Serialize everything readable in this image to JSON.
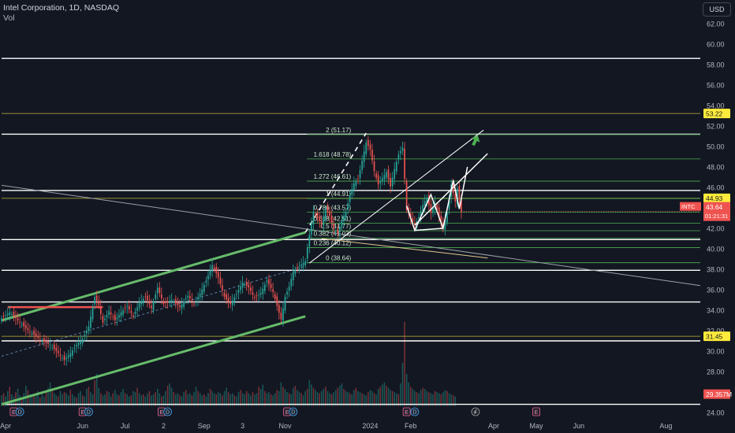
{
  "header": {
    "symbol_title": "Intel Corporation, 1D, NASDAQ",
    "volume_label": "Vol",
    "currency_button": "USD"
  },
  "chart_data": {
    "type": "candlestick",
    "y_range": [
      23.5,
      65
    ],
    "y_ticks": [
      "62.00",
      "60.00",
      "58.00",
      "56.00",
      "54.00",
      "52.00",
      "50.00",
      "48.00",
      "46.00",
      "44.00",
      "42.00",
      "40.00",
      "38.00",
      "36.00",
      "34.00",
      "32.00",
      "30.00",
      "28.00",
      "26.00",
      "24.00"
    ],
    "x_ticks": [
      {
        "label": "Apr",
        "idx": 2
      },
      {
        "label": "Jun",
        "idx": 40
      },
      {
        "label": "Jul",
        "idx": 61
      },
      {
        "label": "2",
        "idx": 80
      },
      {
        "label": "Sep",
        "idx": 100
      },
      {
        "label": "3",
        "idx": 119
      },
      {
        "label": "Nov",
        "idx": 140
      },
      {
        "label": "2024",
        "idx": 182
      },
      {
        "label": "Feb",
        "idx": 202
      },
      {
        "label": "Apr",
        "idx": 243
      },
      {
        "label": "May",
        "idx": 264
      },
      {
        "label": "Jun",
        "idx": 285
      },
      {
        "label": "Aug",
        "idx": 328
      }
    ],
    "x_range": [
      0,
      345
    ],
    "colors": {
      "up": "#26a69a",
      "down": "#ef5350",
      "green_line": "#66bb6a",
      "white": "#ffffff",
      "fib": "#4caf50",
      "accent": "#ffeb3b"
    },
    "prices": [
      {
        "idx": 0,
        "v": 33.2
      },
      {
        "idx": 4,
        "v": 33.8
      },
      {
        "idx": 8,
        "v": 33.0
      },
      {
        "idx": 12,
        "v": 32.2
      },
      {
        "idx": 16,
        "v": 31.6
      },
      {
        "idx": 20,
        "v": 31.0
      },
      {
        "idx": 24,
        "v": 30.6
      },
      {
        "idx": 28,
        "v": 29.8
      },
      {
        "idx": 31,
        "v": 29.1
      },
      {
        "idx": 34,
        "v": 29.8
      },
      {
        "idx": 37,
        "v": 30.6
      },
      {
        "idx": 40,
        "v": 31.2
      },
      {
        "idx": 43,
        "v": 32.4
      },
      {
        "idx": 46,
        "v": 35.3
      },
      {
        "idx": 48,
        "v": 34.5
      },
      {
        "idx": 50,
        "v": 32.8
      },
      {
        "idx": 53,
        "v": 33.9
      },
      {
        "idx": 56,
        "v": 33.0
      },
      {
        "idx": 59,
        "v": 33.8
      },
      {
        "idx": 62,
        "v": 34.4
      },
      {
        "idx": 65,
        "v": 33.4
      },
      {
        "idx": 68,
        "v": 34.7
      },
      {
        "idx": 71,
        "v": 35.3
      },
      {
        "idx": 74,
        "v": 34.2
      },
      {
        "idx": 77,
        "v": 36.2
      },
      {
        "idx": 80,
        "v": 34.6
      },
      {
        "idx": 84,
        "v": 35.0
      },
      {
        "idx": 88,
        "v": 34.3
      },
      {
        "idx": 92,
        "v": 35.4
      },
      {
        "idx": 95,
        "v": 34.6
      },
      {
        "idx": 98,
        "v": 35.6
      },
      {
        "idx": 101,
        "v": 36.9
      },
      {
        "idx": 104,
        "v": 38.4
      },
      {
        "idx": 107,
        "v": 37.2
      },
      {
        "idx": 110,
        "v": 35.3
      },
      {
        "idx": 113,
        "v": 34.6
      },
      {
        "idx": 116,
        "v": 35.6
      },
      {
        "idx": 119,
        "v": 36.7
      },
      {
        "idx": 122,
        "v": 36.2
      },
      {
        "idx": 125,
        "v": 35.2
      },
      {
        "idx": 128,
        "v": 35.7
      },
      {
        "idx": 131,
        "v": 36.9
      },
      {
        "idx": 134,
        "v": 35.8
      },
      {
        "idx": 136,
        "v": 34.4
      },
      {
        "idx": 138,
        "v": 33.1
      },
      {
        "idx": 140,
        "v": 35.3
      },
      {
        "idx": 142,
        "v": 36.3
      },
      {
        "idx": 144,
        "v": 37.8
      },
      {
        "idx": 147,
        "v": 38.3
      },
      {
        "idx": 150,
        "v": 38.8
      },
      {
        "idx": 152,
        "v": 41.4
      },
      {
        "idx": 154,
        "v": 43.6
      },
      {
        "idx": 156,
        "v": 43.0
      },
      {
        "idx": 158,
        "v": 42.4
      },
      {
        "idx": 160,
        "v": 43.9
      },
      {
        "idx": 162,
        "v": 43.2
      },
      {
        "idx": 164,
        "v": 41.9
      },
      {
        "idx": 166,
        "v": 41.5
      },
      {
        "idx": 168,
        "v": 42.8
      },
      {
        "idx": 170,
        "v": 43.6
      },
      {
        "idx": 172,
        "v": 45.3
      },
      {
        "idx": 174,
        "v": 46.4
      },
      {
        "idx": 176,
        "v": 46.8
      },
      {
        "idx": 178,
        "v": 48.6
      },
      {
        "idx": 180,
        "v": 50.4
      },
      {
        "idx": 182,
        "v": 49.7
      },
      {
        "idx": 184,
        "v": 47.6
      },
      {
        "idx": 186,
        "v": 46.3
      },
      {
        "idx": 188,
        "v": 46.9
      },
      {
        "idx": 190,
        "v": 47.5
      },
      {
        "idx": 192,
        "v": 46.1
      },
      {
        "idx": 194,
        "v": 47.8
      },
      {
        "idx": 196,
        "v": 49.2
      },
      {
        "idx": 198,
        "v": 49.9
      },
      {
        "idx": 200,
        "v": 43.8
      },
      {
        "idx": 202,
        "v": 43.0
      },
      {
        "idx": 204,
        "v": 42.3
      },
      {
        "idx": 206,
        "v": 43.1
      },
      {
        "idx": 208,
        "v": 44.3
      },
      {
        "idx": 210,
        "v": 45.0
      },
      {
        "idx": 212,
        "v": 43.5
      },
      {
        "idx": 214,
        "v": 44.5
      },
      {
        "idx": 216,
        "v": 43.1
      },
      {
        "idx": 218,
        "v": 42.0
      },
      {
        "idx": 220,
        "v": 43.6
      },
      {
        "idx": 222,
        "v": 46.3
      },
      {
        "idx": 224,
        "v": 44.6
      },
      {
        "idx": 225,
        "v": 45.9
      },
      {
        "idx": 227,
        "v": 43.6
      }
    ],
    "volume_max": 80,
    "volume": [
      10,
      12,
      9,
      14,
      18,
      11,
      9,
      13,
      16,
      10,
      8,
      12,
      19,
      15,
      11,
      9,
      10,
      12,
      14,
      8,
      11,
      9,
      13,
      17,
      22,
      16,
      12,
      10,
      9,
      14,
      11,
      13,
      12,
      10,
      15,
      11,
      9,
      8,
      12,
      14,
      10,
      9,
      16,
      18,
      13,
      11,
      24,
      30,
      17,
      12,
      10,
      11,
      14,
      13,
      9,
      12,
      15,
      11,
      10,
      13,
      16,
      12,
      11,
      9,
      10,
      14,
      13,
      17,
      12,
      10,
      11,
      9,
      12,
      14,
      10,
      11,
      13,
      16,
      12,
      9,
      10,
      14,
      19,
      21,
      17,
      13,
      11,
      12,
      10,
      9,
      13,
      15,
      11,
      12,
      10,
      13,
      18,
      14,
      12,
      10,
      11,
      9,
      12,
      16,
      14,
      12,
      11,
      13,
      12,
      10,
      14,
      17,
      13,
      11,
      12,
      10,
      9,
      13,
      15,
      12,
      11,
      14,
      12,
      10,
      13,
      11,
      12,
      18,
      16,
      20,
      14,
      12,
      13,
      11,
      10,
      12,
      15,
      14,
      22,
      18,
      16,
      13,
      12,
      11,
      17,
      19,
      15,
      13,
      12,
      10,
      14,
      16,
      24,
      20,
      17,
      15,
      13,
      12,
      14,
      16,
      18,
      14,
      12,
      11,
      13,
      15,
      17,
      19,
      21,
      16,
      14,
      13,
      12,
      11,
      15,
      17,
      14,
      13,
      12,
      11,
      10,
      13,
      15,
      14,
      12,
      11,
      16,
      18,
      20,
      22,
      19,
      17,
      15,
      14,
      13,
      12,
      11,
      21,
      40,
      78,
      30,
      22,
      18,
      16,
      14,
      13,
      12,
      15,
      17,
      16,
      14,
      13,
      12,
      11,
      14,
      13,
      12,
      11,
      13,
      15,
      14,
      12,
      11,
      10,
      9
    ],
    "horizontal_levels": [
      {
        "v": 58.6,
        "color": "#ffffff",
        "w": 1.4,
        "x0": 0,
        "x1": 345
      },
      {
        "v": 53.22,
        "color": "#c6b63a",
        "w": 0.8,
        "x0": 0,
        "x1": 345
      },
      {
        "v": 51.2,
        "color": "#ffffff",
        "w": 1.4,
        "x0": 0,
        "x1": 345
      },
      {
        "v": 45.7,
        "color": "#ffffff",
        "w": 1.4,
        "x0": 0,
        "x1": 345
      },
      {
        "v": 44.93,
        "color": "#c6b63a",
        "w": 0.8,
        "x0": 0,
        "x1": 345
      },
      {
        "v": 40.9,
        "color": "#ffffff",
        "w": 1.4,
        "x0": 0,
        "x1": 345
      },
      {
        "v": 37.9,
        "color": "#ffffff",
        "w": 1.4,
        "x0": 0,
        "x1": 345
      },
      {
        "v": 34.8,
        "color": "#ffffff",
        "w": 1.4,
        "x0": 0,
        "x1": 345
      },
      {
        "v": 31.45,
        "color": "#c6b63a",
        "w": 0.8,
        "x0": 0,
        "x1": 345
      },
      {
        "v": 31.0,
        "color": "#ffffff",
        "w": 1.4,
        "x0": 0,
        "x1": 345
      },
      {
        "v": 24.8,
        "color": "#ffffff",
        "w": 1.4,
        "x0": 0,
        "x1": 345
      }
    ],
    "fib_levels": [
      {
        "label": "2 (51.17)",
        "v": 51.17
      },
      {
        "label": "1.618 (48.78)",
        "v": 48.78
      },
      {
        "label": "1.272 (46.61)",
        "v": 46.61
      },
      {
        "label": "1 (44.91)",
        "v": 44.91
      },
      {
        "label": "0.786 (43.57)",
        "v": 43.57
      },
      {
        "label": "0.618 (42.51)",
        "v": 42.51
      },
      {
        "label": "0.5 (41.77)",
        "v": 41.77
      },
      {
        "label": "0.382 (41.03)",
        "v": 41.03
      },
      {
        "label": "0.236 (40.12)",
        "v": 40.12
      },
      {
        "label": "0 (38.64)",
        "v": 38.64
      }
    ],
    "fib_x_range": [
      150,
      345
    ],
    "price_labels": [
      {
        "text": "53.22",
        "v": 53.22,
        "bg": "#ffeb3b",
        "fg": "#131722"
      },
      {
        "text": "44.93",
        "v": 44.93,
        "bg": "#ffeb3b",
        "fg": "#131722"
      },
      {
        "text": "31.45",
        "v": 31.45,
        "bg": "#ffeb3b",
        "fg": "#131722"
      },
      {
        "text": "29.357M",
        "v": 25.8,
        "bg": "#ef5350",
        "fg": "#ffffff"
      }
    ],
    "current": {
      "symbol": "INTC",
      "price": "43.64",
      "countdown": "01:21:31",
      "v": 43.64,
      "bg": "#ef5350"
    },
    "markers": [
      {
        "type": "E",
        "idx": 6
      },
      {
        "type": "D",
        "idx": 9
      },
      {
        "type": "E",
        "idx": 40
      },
      {
        "type": "D",
        "idx": 43
      },
      {
        "type": "E",
        "idx": 79
      },
      {
        "type": "D",
        "idx": 82
      },
      {
        "type": "E",
        "idx": 141
      },
      {
        "type": "D",
        "idx": 144
      },
      {
        "type": "E",
        "idx": 200
      },
      {
        "type": "D",
        "idx": 204
      },
      {
        "type": "S",
        "idx": 234
      },
      {
        "type": "E",
        "idx": 264
      }
    ]
  }
}
